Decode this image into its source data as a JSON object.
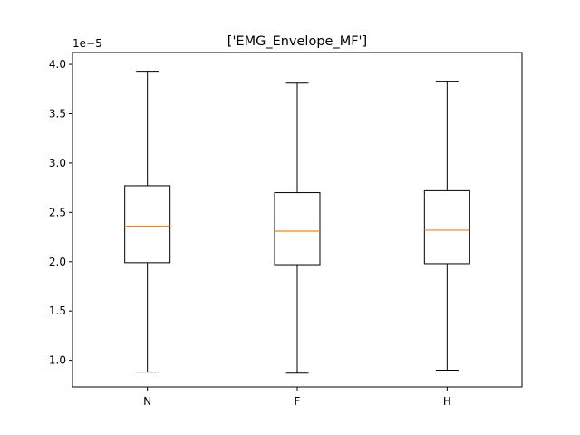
{
  "chart_data": {
    "type": "box",
    "title": "['EMG_Envelope_MF']",
    "xlabel": "",
    "ylabel": "",
    "axis_offset_label": "1e−5",
    "y_scale_factor": 1e-05,
    "ylim": [
      0.73,
      4.12
    ],
    "yticks": [
      1.0,
      1.5,
      2.0,
      2.5,
      3.0,
      3.5,
      4.0
    ],
    "ytick_labels": [
      "1.0",
      "1.5",
      "2.0",
      "2.5",
      "3.0",
      "3.5",
      "4.0"
    ],
    "categories": [
      "N",
      "F",
      "H"
    ],
    "boxes": [
      {
        "category": "N",
        "whisker_low": 0.88,
        "q1": 1.99,
        "median": 2.36,
        "q3": 2.77,
        "whisker_high": 3.93
      },
      {
        "category": "F",
        "whisker_low": 0.87,
        "q1": 1.97,
        "median": 2.31,
        "q3": 2.7,
        "whisker_high": 3.81
      },
      {
        "category": "H",
        "whisker_low": 0.9,
        "q1": 1.98,
        "median": 2.32,
        "q3": 2.72,
        "whisker_high": 3.83
      }
    ],
    "grid": false,
    "colors": {
      "box": "#000000",
      "median": "#ff7f0e",
      "background": "#ffffff"
    }
  }
}
